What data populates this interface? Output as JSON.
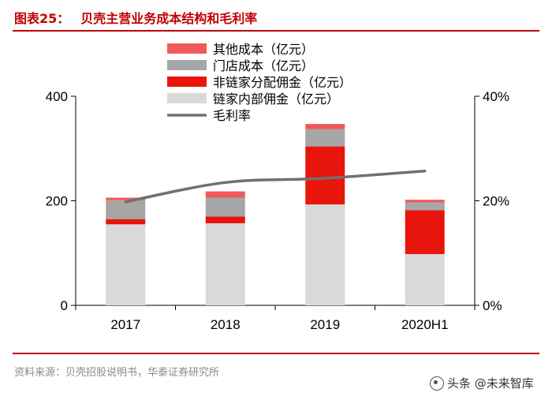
{
  "figure": {
    "label": "图表25：",
    "title": "贝壳主营业务成本结构和毛利率",
    "source": "资料来源：贝壳招股说明书，华泰证券研究所",
    "watermark": "头条 @未来智库"
  },
  "chart_data": {
    "type": "bar",
    "stacked": true,
    "categories": [
      "2017",
      "2018",
      "2019",
      "2020H1"
    ],
    "series": [
      {
        "name": "链家内部佣金（亿元）",
        "color": "#d9d9d9",
        "values": [
          155,
          157,
          193,
          98
        ]
      },
      {
        "name": "非链家分配佣金（亿元）",
        "color": "#e8150c",
        "values": [
          10,
          13,
          111,
          84
        ]
      },
      {
        "name": "门店成本（亿元）",
        "color": "#a6a6a6",
        "values": [
          36,
          36,
          33,
          15
        ]
      },
      {
        "name": "其他成本（亿元）",
        "color": "#f05a5a",
        "values": [
          5,
          12,
          10,
          5
        ]
      }
    ],
    "line_series": [
      {
        "name": "毛利率",
        "color": "#707070",
        "axis": "right",
        "values": [
          19.8,
          23.5,
          24.3,
          25.7
        ]
      }
    ],
    "legend_order": [
      "其他成本（亿元）",
      "门店成本（亿元）",
      "非链家分配佣金（亿元）",
      "链家内部佣金（亿元）",
      "毛利率"
    ],
    "y_left": {
      "min": 0,
      "max": 400,
      "ticks": [
        0,
        200,
        400
      ]
    },
    "y_right": {
      "min": 0,
      "max": 40,
      "ticks": [
        0,
        20,
        40
      ],
      "tick_labels": [
        "0%",
        "20%",
        "40%"
      ]
    },
    "grid": false,
    "legend_position": "top-center"
  }
}
